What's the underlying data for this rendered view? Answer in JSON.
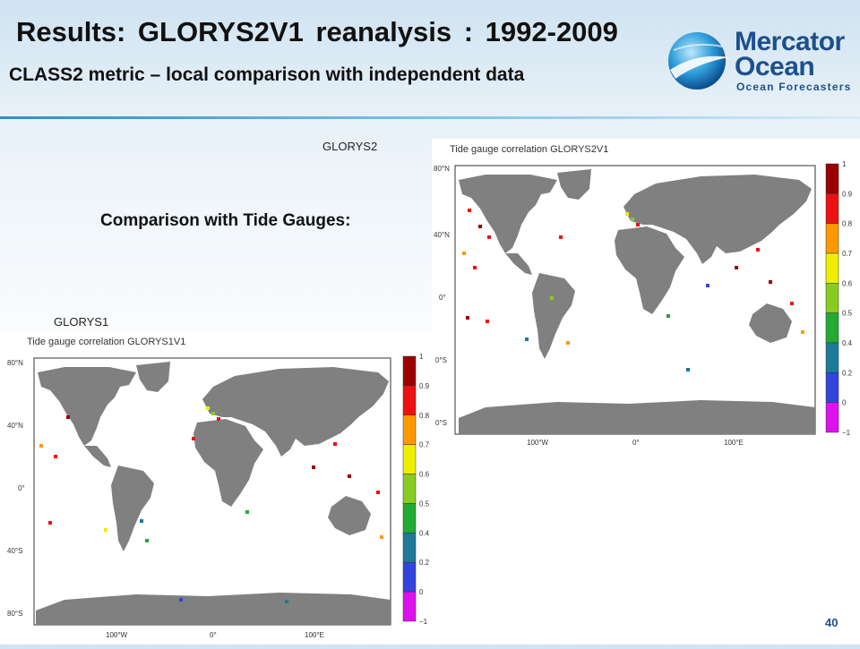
{
  "slide": {
    "title": "Results: GLORYS2V1  reanalysis :  1992-2009",
    "subtitle": "CLASS2 metric – local comparison with independent data",
    "comparison_heading": "Comparison with Tide Gauges:",
    "page_number": "40"
  },
  "logo": {
    "line1": "Mercator",
    "line2": "Ocean",
    "tagline": "Ocean Forecasters",
    "icon": "globe-swoosh-icon"
  },
  "colors": {
    "land": "#808080",
    "accent": "#1d4f8c"
  },
  "maps": [
    {
      "id": "g2",
      "label": "GLORYS2",
      "title": "Tide gauge correlation GLORYS2V1",
      "lat_ticks": [
        "80°N",
        "40°N",
        "0°",
        "0°S",
        "0°S"
      ],
      "lon_ticks": [
        "100°W",
        "0°",
        "100°E"
      ]
    },
    {
      "id": "g1",
      "label": "GLORYS1",
      "title": "Tide gauge correlation GLORYS1V1",
      "lat_ticks": [
        "80°N",
        "40°N",
        "0°",
        "40°S",
        "80°S"
      ],
      "lon_ticks": [
        "100°W",
        "0°",
        "100°E"
      ]
    }
  ],
  "colorbar": {
    "labels": [
      "1",
      "0.9",
      "0.8",
      "0.7",
      "0.6",
      "0.5",
      "0.4",
      "0.2",
      "0",
      "−1"
    ],
    "colors": [
      "#9b0000",
      "#ee1111",
      "#ff9900",
      "#eeee00",
      "#88cc22",
      "#22aa33",
      "#1f7a9a",
      "#3344dd",
      "#dd11ee"
    ]
  }
}
